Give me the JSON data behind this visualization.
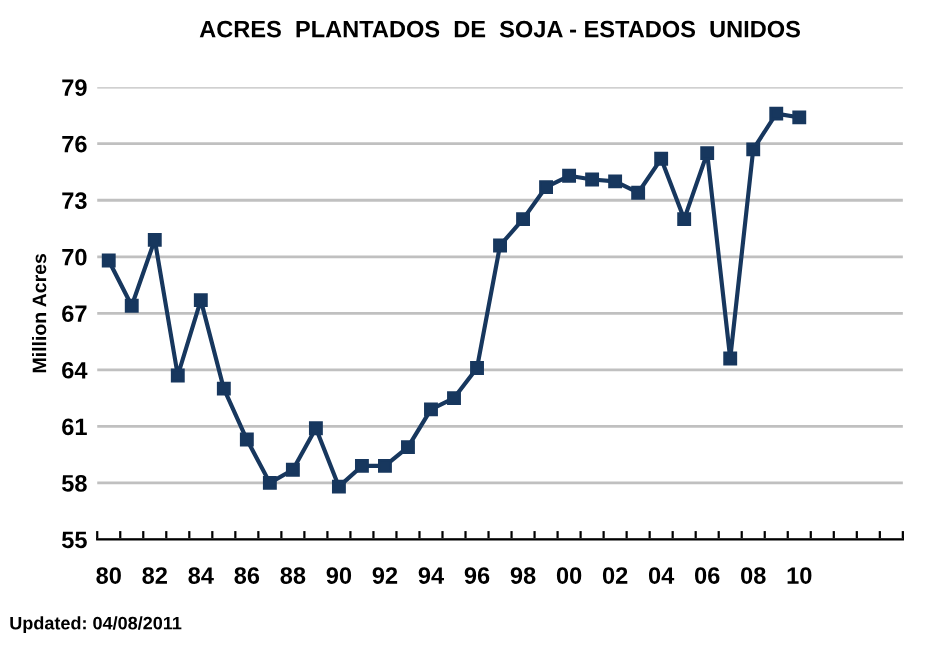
{
  "chart_data": {
    "type": "line",
    "title": "ACRES  PLANTADOS  DE  SOJA - ESTADOS  UNIDOS",
    "ylabel": "Million Acres",
    "categories": [
      "80",
      null,
      "82",
      null,
      "84",
      null,
      "86",
      null,
      "88",
      null,
      "90",
      null,
      "92",
      null,
      "94",
      null,
      "96",
      null,
      "98",
      null,
      "00",
      null,
      "02",
      null,
      "04",
      null,
      "06",
      null,
      "08",
      null,
      "10",
      null,
      null,
      null,
      null
    ],
    "series": [
      {
        "color": "#17375e",
        "values": [
          69.8,
          67.4,
          70.9,
          63.7,
          67.7,
          63.0,
          60.3,
          58.0,
          58.7,
          60.9,
          57.8,
          58.9,
          58.9,
          59.9,
          61.9,
          62.5,
          64.1,
          70.6,
          72.0,
          73.7,
          74.3,
          74.1,
          74.0,
          73.4,
          75.2,
          72.0,
          75.5,
          64.6,
          75.7,
          77.6,
          77.4,
          null,
          null,
          null,
          null
        ]
      }
    ],
    "ylim": [
      55,
      79
    ],
    "yticks": [
      55,
      58,
      61,
      64,
      67,
      70,
      73,
      76,
      79
    ],
    "grid": "y",
    "marker": "square",
    "line_style": "solid",
    "annotations": [
      "Updated: 04/08/2011"
    ]
  }
}
